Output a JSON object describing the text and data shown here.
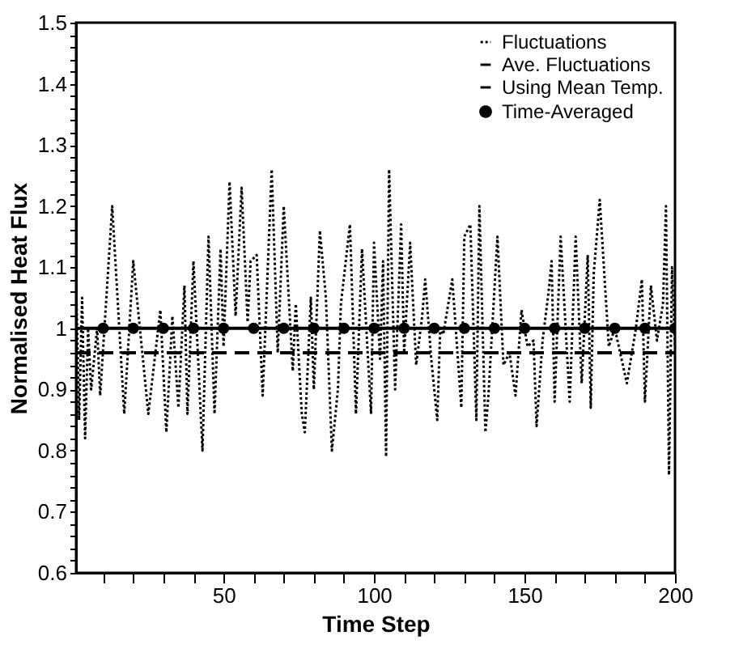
{
  "chart_data": {
    "type": "line",
    "xlabel": "Time Step",
    "ylabel": "Normalised Heat Flux",
    "xlim": [
      1,
      200
    ],
    "ylim": [
      0.6,
      1.5
    ],
    "xticks": [
      {
        "value": 10,
        "label": null
      },
      {
        "value": 20,
        "label": null
      },
      {
        "value": 30,
        "label": null
      },
      {
        "value": 40,
        "label": null
      },
      50,
      {
        "value": 60,
        "label": null
      },
      {
        "value": 70,
        "label": null
      },
      {
        "value": 80,
        "label": null
      },
      {
        "value": 90,
        "label": null
      },
      100,
      {
        "value": 110,
        "label": null
      },
      {
        "value": 120,
        "label": null
      },
      {
        "value": 130,
        "label": null
      },
      {
        "value": 140,
        "label": null
      },
      150,
      {
        "value": 160,
        "label": null
      },
      {
        "value": 170,
        "label": null
      },
      {
        "value": 180,
        "label": null
      },
      {
        "value": 190,
        "label": null
      },
      200
    ],
    "yticks": [
      0.6,
      {
        "value": 0.62,
        "label": null
      },
      {
        "value": 0.64,
        "label": null
      },
      {
        "value": 0.66,
        "label": null
      },
      {
        "value": 0.68,
        "label": null
      },
      0.7,
      {
        "value": 0.72,
        "label": null
      },
      {
        "value": 0.74,
        "label": null
      },
      {
        "value": 0.76,
        "label": null
      },
      {
        "value": 0.78,
        "label": null
      },
      0.8,
      {
        "value": 0.82,
        "label": null
      },
      {
        "value": 0.84,
        "label": null
      },
      {
        "value": 0.86,
        "label": null
      },
      {
        "value": 0.88,
        "label": null
      },
      0.9,
      {
        "value": 0.92,
        "label": null
      },
      {
        "value": 0.94,
        "label": null
      },
      {
        "value": 0.96,
        "label": null
      },
      {
        "value": 0.98,
        "label": null
      },
      1,
      {
        "value": 1.02,
        "label": null
      },
      {
        "value": 1.04,
        "label": null
      },
      {
        "value": 1.06,
        "label": null
      },
      {
        "value": 1.08,
        "label": null
      },
      1.1,
      {
        "value": 1.12,
        "label": null
      },
      {
        "value": 1.14,
        "label": null
      },
      {
        "value": 1.16,
        "label": null
      },
      {
        "value": 1.18,
        "label": null
      },
      1.2,
      {
        "value": 1.22,
        "label": null
      },
      {
        "value": 1.24,
        "label": null
      },
      {
        "value": 1.26,
        "label": null
      },
      {
        "value": 1.28,
        "label": null
      },
      1.3,
      {
        "value": 1.32,
        "label": null
      },
      {
        "value": 1.34,
        "label": null
      },
      {
        "value": 1.36,
        "label": null
      },
      {
        "value": 1.38,
        "label": null
      },
      1.4,
      {
        "value": 1.42,
        "label": null
      },
      {
        "value": 1.44,
        "label": null
      },
      {
        "value": 1.46,
        "label": null
      },
      {
        "value": 1.48,
        "label": null
      },
      1.5
    ],
    "legend": "top right",
    "grid": false,
    "series": [
      {
        "name": "Fluctuations",
        "line_style": "dotted",
        "color": "#000000",
        "x": [
          1,
          2,
          3,
          4,
          5,
          6,
          8,
          9,
          13,
          17,
          20,
          23,
          25,
          29,
          31,
          33,
          35,
          37,
          38,
          40,
          43,
          45,
          47,
          49,
          50,
          52,
          54,
          56,
          58,
          59,
          61,
          63,
          66,
          68,
          70,
          73,
          74,
          76,
          77,
          79,
          80,
          82,
          84,
          86,
          88,
          89,
          92,
          94,
          96,
          99,
          100,
          102,
          103,
          104,
          105,
          107,
          109,
          110,
          112,
          114,
          116,
          117,
          119,
          121,
          122,
          123,
          126,
          129,
          130,
          132,
          134,
          135,
          137,
          138,
          141,
          143,
          145,
          147,
          149,
          151,
          153,
          154,
          156,
          158,
          159,
          160,
          162,
          165,
          167,
          169,
          171,
          172,
          173,
          175,
          178,
          180,
          184,
          187,
          189,
          190,
          192,
          194,
          196,
          197,
          198,
          199,
          200
        ],
        "values": [
          1.08,
          0.85,
          1.05,
          0.82,
          1.0,
          0.9,
          1.0,
          0.89,
          1.2,
          0.86,
          1.11,
          0.96,
          0.86,
          1.03,
          0.83,
          1.02,
          0.87,
          1.07,
          0.86,
          1.11,
          0.8,
          1.15,
          0.86,
          1.13,
          0.97,
          1.24,
          1.02,
          1.23,
          1.01,
          1.11,
          1.12,
          0.89,
          1.26,
          0.96,
          1.2,
          0.93,
          1.04,
          0.86,
          0.83,
          1.05,
          0.9,
          1.16,
          1.05,
          0.8,
          0.9,
          1.04,
          1.17,
          0.86,
          1.13,
          0.86,
          1.14,
          0.95,
          1.11,
          0.79,
          1.26,
          0.9,
          1.17,
          0.96,
          1.14,
          0.94,
          1.02,
          1.08,
          0.95,
          0.85,
          1.0,
          0.99,
          1.08,
          0.87,
          1.15,
          1.17,
          0.85,
          1.2,
          0.83,
          0.89,
          1.15,
          0.94,
          0.96,
          0.89,
          1.03,
          0.97,
          0.98,
          0.84,
          0.98,
          1.06,
          1.11,
          0.88,
          1.15,
          0.88,
          1.15,
          0.91,
          1.12,
          0.87,
          1.09,
          1.21,
          0.97,
          1.0,
          0.91,
          1.0,
          1.08,
          0.88,
          1.07,
          0.98,
          1.04,
          1.2,
          0.76,
          1.1,
          0.97
        ]
      },
      {
        "name": "Ave. Fluctuations",
        "line_style": "solid",
        "color": "#000000",
        "x": [
          1,
          200
        ],
        "values": [
          1,
          1
        ]
      },
      {
        "name": "Using Mean Temp.",
        "line_style": "dashed",
        "color": "#000000",
        "x": [
          1,
          200
        ],
        "values": [
          0.96,
          0.96
        ]
      },
      {
        "name": "Time-Averaged",
        "type": "scatter",
        "marker": "circle",
        "color": "#000000",
        "x": [
          10,
          20,
          30,
          40,
          50,
          60,
          70,
          80,
          90,
          100,
          110,
          120,
          130,
          140,
          150,
          160,
          170,
          180,
          190,
          200
        ],
        "values": [
          1,
          1,
          1,
          1,
          1,
          1,
          1,
          1,
          1,
          1,
          1,
          1,
          1,
          1,
          1,
          1,
          1,
          1,
          1,
          1
        ]
      }
    ]
  }
}
